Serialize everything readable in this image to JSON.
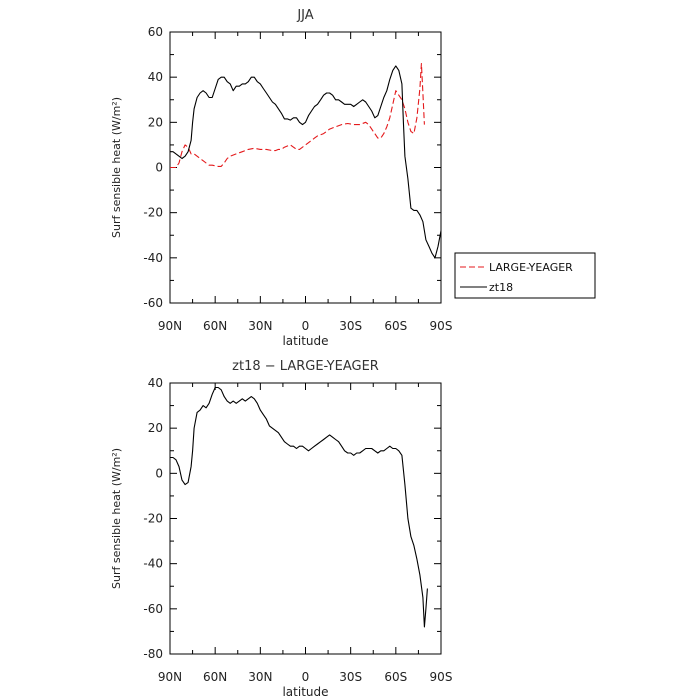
{
  "chart_data": [
    {
      "type": "line",
      "title": "JJA",
      "xlabel": "latitude",
      "ylabel": "Surf sensible heat (W/m²)",
      "ylim": [
        -60,
        60
      ],
      "yticks": [
        -60,
        -40,
        -20,
        0,
        20,
        40,
        60
      ],
      "xticks": [
        {
          "value": 90,
          "label": "90N"
        },
        {
          "value": 60,
          "label": "60N"
        },
        {
          "value": 30,
          "label": "30N"
        },
        {
          "value": 0,
          "label": "0"
        },
        {
          "value": -30,
          "label": "30S"
        },
        {
          "value": -60,
          "label": "60S"
        },
        {
          "value": -90,
          "label": "90S"
        }
      ],
      "legend_position": "right",
      "grid": false,
      "series": [
        {
          "name": "LARGE-YEAGER",
          "color": "#e41a1c",
          "dash": "dashed",
          "points": [
            [
              90,
              0
            ],
            [
              86,
              0
            ],
            [
              84,
              2
            ],
            [
              82,
              7
            ],
            [
              80,
              10
            ],
            [
              78,
              9
            ],
            [
              76,
              6
            ],
            [
              74,
              6
            ],
            [
              72,
              5
            ],
            [
              70,
              4
            ],
            [
              68,
              3
            ],
            [
              66,
              2
            ],
            [
              64,
              1
            ],
            [
              62,
              1
            ],
            [
              58,
              0.5
            ],
            [
              56,
              0.5
            ],
            [
              54,
              2
            ],
            [
              52,
              4
            ],
            [
              50,
              5
            ],
            [
              46,
              6
            ],
            [
              42,
              7
            ],
            [
              38,
              8
            ],
            [
              34,
              8.5
            ],
            [
              30,
              8
            ],
            [
              26,
              8
            ],
            [
              22,
              7.5
            ],
            [
              20,
              7.5
            ],
            [
              18,
              8
            ],
            [
              16,
              8
            ],
            [
              14,
              9
            ],
            [
              12,
              9.5
            ],
            [
              10,
              10
            ],
            [
              8,
              9
            ],
            [
              6,
              8
            ],
            [
              4,
              8
            ],
            [
              2,
              9
            ],
            [
              0,
              10
            ],
            [
              -2,
              11
            ],
            [
              -4,
              12
            ],
            [
              -6,
              13
            ],
            [
              -8,
              14
            ],
            [
              -12,
              15
            ],
            [
              -16,
              17
            ],
            [
              -20,
              18
            ],
            [
              -24,
              19
            ],
            [
              -28,
              19.5
            ],
            [
              -32,
              19
            ],
            [
              -36,
              19
            ],
            [
              -40,
              20
            ],
            [
              -42,
              19
            ],
            [
              -44,
              17
            ],
            [
              -46,
              15
            ],
            [
              -48,
              13
            ],
            [
              -50,
              13
            ],
            [
              -52,
              15
            ],
            [
              -54,
              18
            ],
            [
              -56,
              22
            ],
            [
              -58,
              28
            ],
            [
              -60,
              34
            ],
            [
              -62,
              32
            ],
            [
              -64,
              30
            ],
            [
              -66,
              26
            ],
            [
              -68,
              20
            ],
            [
              -70,
              16
            ],
            [
              -72,
              15
            ],
            [
              -74,
              22
            ],
            [
              -76,
              35
            ],
            [
              -77,
              46
            ],
            [
              -78,
              33
            ],
            [
              -79,
              19
            ]
          ]
        },
        {
          "name": "zt18",
          "color": "#000000",
          "dash": "solid",
          "points": [
            [
              90,
              7
            ],
            [
              88,
              7
            ],
            [
              86,
              6
            ],
            [
              84,
              5
            ],
            [
              82,
              4
            ],
            [
              80,
              5
            ],
            [
              78,
              7
            ],
            [
              76,
              12
            ],
            [
              75,
              20
            ],
            [
              74,
              26
            ],
            [
              72,
              31
            ],
            [
              70,
              33
            ],
            [
              68,
              34
            ],
            [
              66,
              33
            ],
            [
              64,
              31
            ],
            [
              62,
              31
            ],
            [
              60,
              35
            ],
            [
              58,
              39
            ],
            [
              56,
              40
            ],
            [
              54,
              40
            ],
            [
              52,
              38
            ],
            [
              50,
              37
            ],
            [
              48,
              34
            ],
            [
              46,
              36
            ],
            [
              44,
              36
            ],
            [
              42,
              37
            ],
            [
              40,
              37
            ],
            [
              38,
              38
            ],
            [
              36,
              40
            ],
            [
              34,
              40
            ],
            [
              32,
              38
            ],
            [
              30,
              37
            ],
            [
              28,
              35
            ],
            [
              26,
              33
            ],
            [
              24,
              31
            ],
            [
              22,
              29
            ],
            [
              20,
              28
            ],
            [
              18,
              26
            ],
            [
              16,
              24
            ],
            [
              14,
              21.5
            ],
            [
              12,
              21.5
            ],
            [
              10,
              21
            ],
            [
              8,
              22
            ],
            [
              6,
              22
            ],
            [
              4,
              20
            ],
            [
              2,
              19
            ],
            [
              0,
              20
            ],
            [
              -2,
              23
            ],
            [
              -4,
              25
            ],
            [
              -6,
              27
            ],
            [
              -8,
              28
            ],
            [
              -10,
              30
            ],
            [
              -12,
              32
            ],
            [
              -14,
              33
            ],
            [
              -16,
              33
            ],
            [
              -18,
              32
            ],
            [
              -20,
              30
            ],
            [
              -22,
              30
            ],
            [
              -24,
              29
            ],
            [
              -26,
              28
            ],
            [
              -28,
              28
            ],
            [
              -30,
              28
            ],
            [
              -32,
              27
            ],
            [
              -34,
              28
            ],
            [
              -36,
              29
            ],
            [
              -38,
              30
            ],
            [
              -40,
              29
            ],
            [
              -42,
              27
            ],
            [
              -44,
              25
            ],
            [
              -46,
              22
            ],
            [
              -48,
              23
            ],
            [
              -50,
              27
            ],
            [
              -52,
              31
            ],
            [
              -54,
              34
            ],
            [
              -56,
              39
            ],
            [
              -58,
              43
            ],
            [
              -60,
              45
            ],
            [
              -62,
              43
            ],
            [
              -64,
              37
            ],
            [
              -65,
              20
            ],
            [
              -66,
              5
            ],
            [
              -68,
              -5
            ],
            [
              -70,
              -18
            ],
            [
              -72,
              -19
            ],
            [
              -74,
              -19
            ],
            [
              -76,
              -21
            ],
            [
              -78,
              -24
            ],
            [
              -80,
              -32
            ],
            [
              -82,
              -35
            ],
            [
              -84,
              -38
            ],
            [
              -86,
              -40
            ],
            [
              -88,
              -35
            ],
            [
              -90,
              -28
            ]
          ]
        }
      ]
    },
    {
      "type": "line",
      "title": "zt18 − LARGE-YEAGER",
      "xlabel": "latitude",
      "ylabel": "Surf sensible heat (W/m²)",
      "ylim": [
        -80,
        40
      ],
      "yticks": [
        -80,
        -60,
        -40,
        -20,
        0,
        20,
        40
      ],
      "xticks": [
        {
          "value": 90,
          "label": "90N"
        },
        {
          "value": 60,
          "label": "60N"
        },
        {
          "value": 30,
          "label": "30N"
        },
        {
          "value": 0,
          "label": "0"
        },
        {
          "value": -30,
          "label": "30S"
        },
        {
          "value": -60,
          "label": "60S"
        },
        {
          "value": -90,
          "label": "90S"
        }
      ],
      "grid": false,
      "series": [
        {
          "color": "#000000",
          "dash": "solid",
          "points": [
            [
              90,
              7
            ],
            [
              88,
              7
            ],
            [
              86,
              6
            ],
            [
              84,
              3
            ],
            [
              82,
              -3
            ],
            [
              80,
              -5
            ],
            [
              78,
              -4
            ],
            [
              76,
              3
            ],
            [
              75,
              10
            ],
            [
              74,
              20
            ],
            [
              72,
              27
            ],
            [
              70,
              28
            ],
            [
              68,
              30
            ],
            [
              66,
              29
            ],
            [
              64,
              31
            ],
            [
              62,
              35
            ],
            [
              60,
              38
            ],
            [
              58,
              38
            ],
            [
              56,
              37
            ],
            [
              54,
              34
            ],
            [
              52,
              32
            ],
            [
              50,
              31
            ],
            [
              48,
              32
            ],
            [
              46,
              31
            ],
            [
              44,
              32
            ],
            [
              42,
              33
            ],
            [
              40,
              32
            ],
            [
              38,
              33
            ],
            [
              36,
              34
            ],
            [
              34,
              33
            ],
            [
              32,
              31
            ],
            [
              30,
              28
            ],
            [
              28,
              26
            ],
            [
              26,
              24
            ],
            [
              24,
              21
            ],
            [
              22,
              20
            ],
            [
              20,
              19
            ],
            [
              18,
              18
            ],
            [
              16,
              16
            ],
            [
              14,
              14
            ],
            [
              12,
              13
            ],
            [
              10,
              12
            ],
            [
              8,
              12
            ],
            [
              6,
              11
            ],
            [
              4,
              12
            ],
            [
              2,
              12
            ],
            [
              0,
              11
            ],
            [
              -2,
              10
            ],
            [
              -4,
              11
            ],
            [
              -6,
              12
            ],
            [
              -8,
              13
            ],
            [
              -10,
              14
            ],
            [
              -12,
              15
            ],
            [
              -14,
              16
            ],
            [
              -16,
              17
            ],
            [
              -18,
              16
            ],
            [
              -20,
              15
            ],
            [
              -22,
              14
            ],
            [
              -24,
              12
            ],
            [
              -26,
              10
            ],
            [
              -28,
              9
            ],
            [
              -30,
              9
            ],
            [
              -32,
              8
            ],
            [
              -34,
              9
            ],
            [
              -36,
              9
            ],
            [
              -38,
              10
            ],
            [
              -40,
              11
            ],
            [
              -42,
              11
            ],
            [
              -44,
              11
            ],
            [
              -46,
              10
            ],
            [
              -48,
              9
            ],
            [
              -50,
              10
            ],
            [
              -52,
              10
            ],
            [
              -54,
              11
            ],
            [
              -56,
              12
            ],
            [
              -58,
              11
            ],
            [
              -60,
              11
            ],
            [
              -62,
              10
            ],
            [
              -64,
              8
            ],
            [
              -66,
              -5
            ],
            [
              -68,
              -20
            ],
            [
              -70,
              -28
            ],
            [
              -72,
              -32
            ],
            [
              -74,
              -38
            ],
            [
              -76,
              -45
            ],
            [
              -78,
              -55
            ],
            [
              -79,
              -68
            ],
            [
              -80,
              -60
            ],
            [
              -81,
              -51
            ]
          ]
        }
      ]
    }
  ]
}
